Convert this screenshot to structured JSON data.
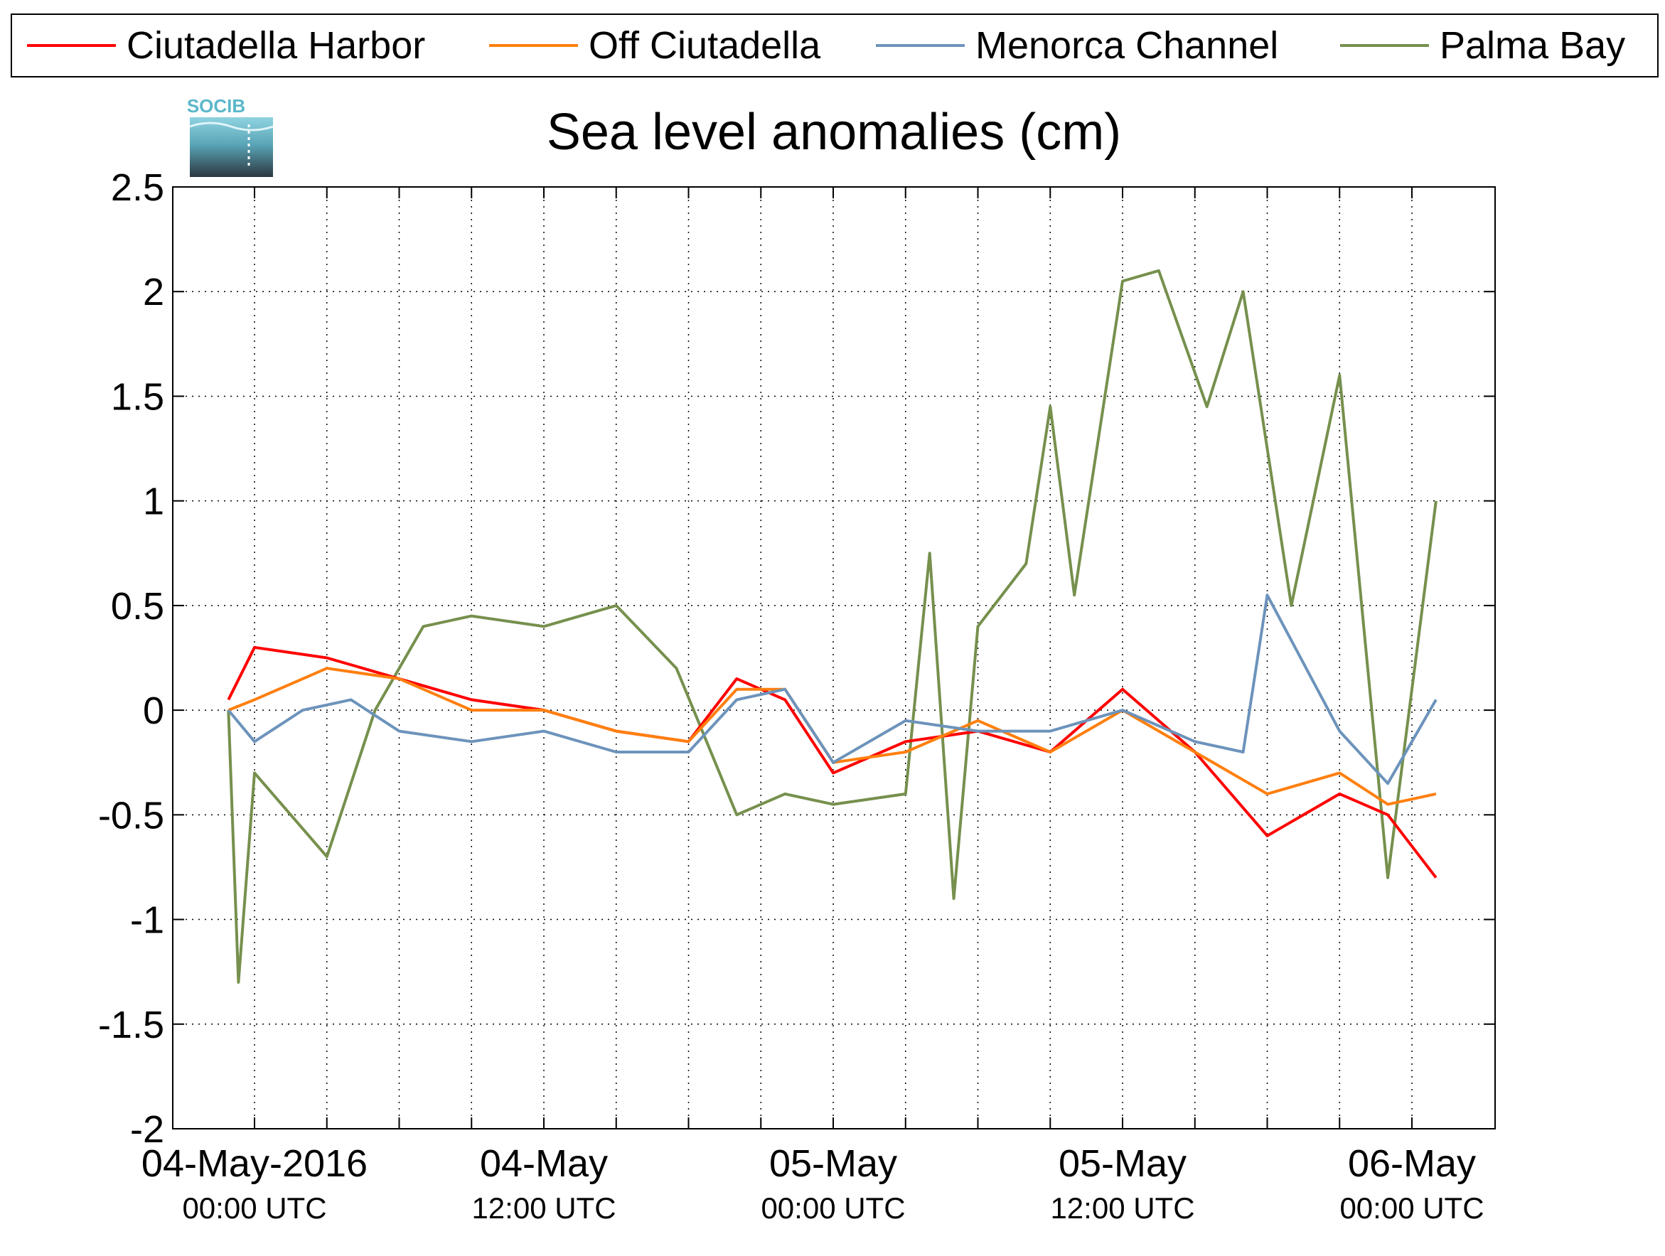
{
  "chart_data": {
    "type": "line",
    "title": "Sea level anomalies (cm)",
    "logo_text": "SOCIB",
    "xlabel": "",
    "ylabel": "",
    "ylim": [
      -2,
      2.5
    ],
    "xlim": [
      "2016-05-04 00:00",
      "2016-05-06 00:00"
    ],
    "yticks": [
      "2.5",
      "2",
      "1.5",
      "1",
      "0.5",
      "0",
      "-0.5",
      "-1",
      "-1.5",
      "-2"
    ],
    "xtick_labels": [
      {
        "date": "04-May-2016",
        "time": "00:00 UTC"
      },
      {
        "date": "04-May",
        "time": "12:00 UTC"
      },
      {
        "date": "05-May",
        "time": "00:00 UTC"
      },
      {
        "date": "05-May",
        "time": "12:00 UTC"
      },
      {
        "date": "06-May",
        "time": "00:00 UTC"
      }
    ],
    "grid": true,
    "legend_position": "top",
    "series": [
      {
        "name": "Ciutadella Harbor",
        "color": "#ff0000",
        "x": [
          "2016-05-03 22:55",
          "2016-05-04 00:00",
          "2016-05-04 03:00",
          "2016-05-04 06:00",
          "2016-05-04 09:00",
          "2016-05-04 12:00",
          "2016-05-04 15:00",
          "2016-05-04 18:00",
          "2016-05-04 20:00",
          "2016-05-04 22:00",
          "2016-05-05 00:00",
          "2016-05-05 03:00",
          "2016-05-05 06:00",
          "2016-05-05 09:00",
          "2016-05-05 12:00",
          "2016-05-05 15:00",
          "2016-05-05 18:00",
          "2016-05-05 21:00",
          "2016-05-05 23:00",
          "2016-05-06 01:00"
        ],
        "values": [
          0.05,
          0.3,
          0.25,
          0.15,
          0.05,
          0.0,
          -0.1,
          -0.15,
          0.15,
          0.05,
          -0.3,
          -0.15,
          -0.1,
          -0.2,
          0.1,
          -0.2,
          -0.6,
          -0.4,
          -0.5,
          -0.8
        ]
      },
      {
        "name": "Off Ciutadella",
        "color": "#ff7f0e",
        "x": [
          "2016-05-03 22:55",
          "2016-05-04 00:00",
          "2016-05-04 03:00",
          "2016-05-04 06:00",
          "2016-05-04 09:00",
          "2016-05-04 12:00",
          "2016-05-04 15:00",
          "2016-05-04 18:00",
          "2016-05-04 20:00",
          "2016-05-04 22:00",
          "2016-05-05 00:00",
          "2016-05-05 03:00",
          "2016-05-05 06:00",
          "2016-05-05 09:00",
          "2016-05-05 12:00",
          "2016-05-05 15:00",
          "2016-05-05 18:00",
          "2016-05-05 21:00",
          "2016-05-05 23:00",
          "2016-05-06 01:00"
        ],
        "values": [
          0.0,
          0.05,
          0.2,
          0.15,
          0.0,
          0.0,
          -0.1,
          -0.15,
          0.1,
          0.1,
          -0.25,
          -0.2,
          -0.05,
          -0.2,
          0.0,
          -0.2,
          -0.4,
          -0.3,
          -0.45,
          -0.4
        ]
      },
      {
        "name": "Menorca Channel",
        "color": "#6c93bb",
        "x": [
          "2016-05-03 22:55",
          "2016-05-04 00:00",
          "2016-05-04 02:00",
          "2016-05-04 04:00",
          "2016-05-04 06:00",
          "2016-05-04 09:00",
          "2016-05-04 12:00",
          "2016-05-04 15:00",
          "2016-05-04 18:00",
          "2016-05-04 20:00",
          "2016-05-04 22:00",
          "2016-05-05 00:00",
          "2016-05-05 03:00",
          "2016-05-05 06:00",
          "2016-05-05 09:00",
          "2016-05-05 12:00",
          "2016-05-05 15:00",
          "2016-05-05 17:00",
          "2016-05-05 18:00",
          "2016-05-05 21:00",
          "2016-05-05 23:00",
          "2016-05-06 01:00"
        ],
        "values": [
          0.0,
          -0.15,
          0.0,
          0.05,
          -0.1,
          -0.15,
          -0.1,
          -0.2,
          -0.2,
          0.05,
          0.1,
          -0.25,
          -0.05,
          -0.1,
          -0.1,
          0.0,
          -0.15,
          -0.2,
          0.55,
          -0.1,
          -0.35,
          0.05
        ]
      },
      {
        "name": "Palma Bay",
        "color": "#76904d",
        "x": [
          "2016-05-03 22:55",
          "2016-05-03 23:20",
          "2016-05-04 00:00",
          "2016-05-04 01:30",
          "2016-05-04 03:00",
          "2016-05-04 05:00",
          "2016-05-04 07:00",
          "2016-05-04 09:00",
          "2016-05-04 12:00",
          "2016-05-04 15:00",
          "2016-05-04 17:30",
          "2016-05-04 20:00",
          "2016-05-04 22:00",
          "2016-05-05 00:00",
          "2016-05-05 03:00",
          "2016-05-05 04:00",
          "2016-05-05 05:00",
          "2016-05-05 06:00",
          "2016-05-05 08:00",
          "2016-05-05 09:00",
          "2016-05-05 10:00",
          "2016-05-05 12:00",
          "2016-05-05 13:30",
          "2016-05-05 15:30",
          "2016-05-05 17:00",
          "2016-05-05 19:00",
          "2016-05-05 21:00",
          "2016-05-05 23:00",
          "2016-05-06 01:00"
        ],
        "values": [
          0.0,
          -1.3,
          -0.3,
          -0.5,
          -0.7,
          0.0,
          0.4,
          0.45,
          0.4,
          0.5,
          0.2,
          -0.5,
          -0.4,
          -0.45,
          -0.4,
          0.75,
          -0.9,
          0.4,
          0.7,
          1.45,
          0.55,
          2.05,
          2.1,
          1.45,
          2.0,
          0.5,
          1.6,
          -0.8,
          1.0
        ]
      }
    ]
  }
}
